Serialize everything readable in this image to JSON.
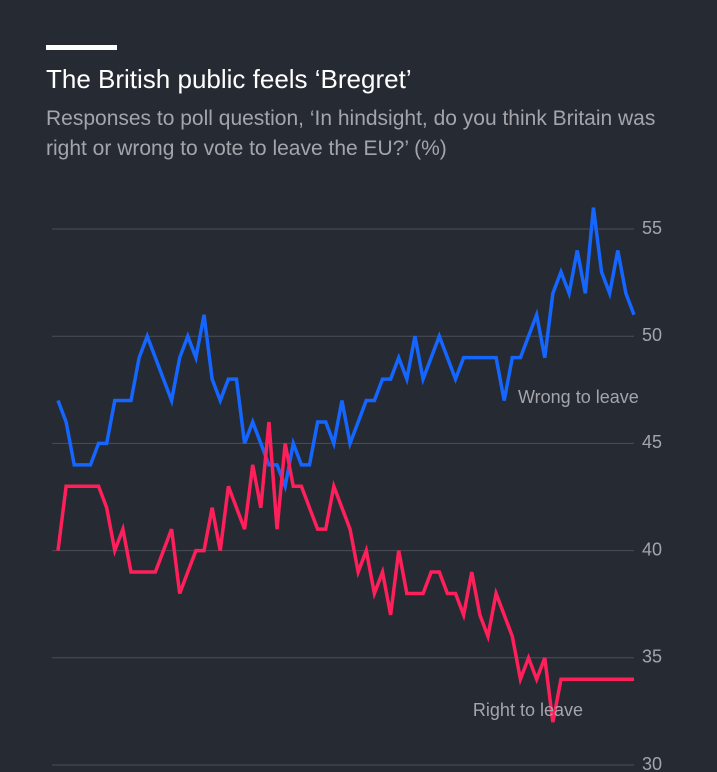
{
  "chart_data": {
    "type": "line",
    "title": "The British public feels ‘Bregret’",
    "subtitle": "Responses to poll question, ‘In hindsight, do you think Britain was right or wrong to vote to leave the EU?’ (%)",
    "categories": [
      null,
      null,
      null,
      null,
      null,
      null,
      null,
      null,
      null,
      null,
      null,
      null,
      null,
      null,
      null,
      null,
      null,
      null,
      null,
      null,
      null,
      null,
      null,
      null,
      null,
      null,
      null,
      null,
      null,
      null,
      null,
      null,
      null,
      null,
      null,
      null,
      null,
      null,
      null,
      null,
      null,
      null,
      null,
      null,
      null,
      null,
      null,
      null,
      null,
      null,
      null,
      null,
      null,
      null,
      null,
      null,
      null,
      null,
      null,
      null,
      null,
      null,
      null,
      null,
      null,
      null,
      null,
      null,
      null,
      null,
      null,
      null
    ],
    "series": [
      {
        "name": "Wrong to leave",
        "color": "#1466ff",
        "values": [
          47,
          46,
          44,
          44,
          44,
          45,
          45,
          47,
          47,
          47,
          49,
          50,
          49,
          48,
          47,
          49,
          50,
          49,
          51,
          48,
          47,
          48,
          48,
          45,
          46,
          45,
          44,
          44,
          43,
          45,
          44,
          44,
          46,
          46,
          45,
          47,
          45,
          46,
          47,
          47,
          48,
          48,
          49,
          48,
          50,
          48,
          49,
          50,
          49,
          48,
          49,
          49,
          49,
          49,
          49,
          47,
          49,
          49,
          50,
          51,
          49,
          52,
          53,
          52,
          54,
          52,
          56,
          53,
          52,
          54,
          52,
          51
        ]
      },
      {
        "name": "Right to leave",
        "color": "#ff1f5a",
        "values": [
          40,
          43,
          43,
          43,
          43,
          43,
          42,
          40,
          41,
          39,
          39,
          39,
          39,
          40,
          41,
          38,
          39,
          40,
          40,
          42,
          40,
          43,
          42,
          41,
          44,
          42,
          46,
          41,
          45,
          43,
          43,
          42,
          41,
          41,
          43,
          42,
          41,
          39,
          40,
          38,
          39,
          37,
          40,
          38,
          38,
          38,
          39,
          39,
          38,
          38,
          37,
          39,
          37,
          36,
          38,
          37,
          36,
          34,
          35,
          34,
          35,
          32,
          34,
          34,
          34,
          34,
          34,
          34,
          34,
          34,
          34,
          34
        ]
      }
    ],
    "ylim": [
      30,
      56
    ],
    "yticks": [
      30,
      35,
      40,
      45,
      50,
      55
    ],
    "grid": true
  }
}
